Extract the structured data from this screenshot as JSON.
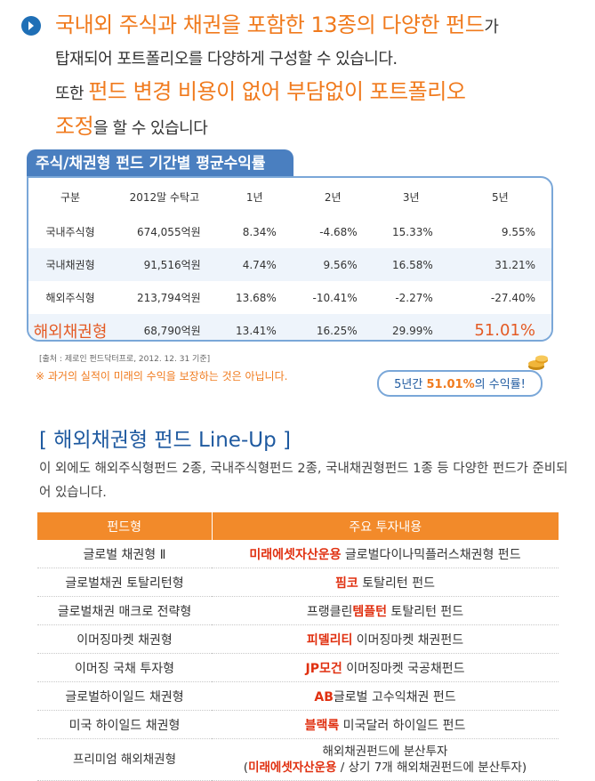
{
  "intro": {
    "line1_hl": "국내외 주식과 채권을 포함한 13종의 다양한 펀드",
    "line1_tail": "가",
    "line2": "탑재되어 포트폴리오를 다양하게 구성할 수 있습니다.",
    "line3_head": "또한 ",
    "line3_hl": "펀드 변경 비용이 없어 부담없이 포트폴리오",
    "line4_hl": "조정",
    "line4_tail": "을 할 수 있습니다"
  },
  "perf": {
    "title": "주식/채권형 펀드 기간별 평균수익률",
    "headers": [
      "구분",
      "2012말 수탁고",
      "1년",
      "2년",
      "3년",
      "5년"
    ],
    "rows": [
      [
        "국내주식형",
        "674,055억원",
        "8.34%",
        "-4.68%",
        "15.33%",
        "9.55%"
      ],
      [
        "국내채권형",
        "91,516억원",
        "4.74%",
        "9.56%",
        "16.58%",
        "31.21%"
      ],
      [
        "해외주식형",
        "213,794억원",
        "13.68%",
        "-10.41%",
        "-2.27%",
        "-27.40%"
      ],
      [
        "해외채권형",
        "68,790억원",
        "13.41%",
        "16.25%",
        "29.99%",
        "51.01%"
      ]
    ],
    "source": "[출처 : 제로인 펀드닥터프로, 2012. 12. 31 기준]",
    "disclaimer": "※ 과거의 실적이 미래의 수익을 보장하는 것은 아닙니다.",
    "callout_head": "5년간 ",
    "callout_pct": "51.01%",
    "callout_tail": "의 수익률!"
  },
  "lineup": {
    "title": "[ 해외채권형 펀드 Line-Up ]",
    "desc": "이 외에도 해외주식형펀드 2종, 국내주식형펀드 2종, 국내채권형펀드 1종 등 다양한 펀드가 준비되어 있습니다.",
    "col1": "펀드형",
    "col2": "주요 투자내용",
    "rows": [
      {
        "type": "글로벌 채권형 Ⅱ",
        "mgr": "미래에셋자산운용",
        "desc": " 글로벌다이나믹플러스채권형 펀드"
      },
      {
        "type": "글로벌채권 토탈리턴형",
        "mgr": "핌코",
        "desc": " 토탈리턴 펀드"
      },
      {
        "type": "글로벌채권 매크로 전략형",
        "pre": "프랭클린",
        "mgr": "템플턴",
        "desc": " 토탈리턴 펀드"
      },
      {
        "type": "이머징마켓 채권형",
        "mgr": "피델리티",
        "desc": " 이머징마켓 채권펀드"
      },
      {
        "type": "이머징 국채 투자형",
        "mgr": "JP모건",
        "desc": " 이머징마켓 국공채펀드"
      },
      {
        "type": "글로벌하이일드 채권형",
        "mgr": "AB",
        "desc": "글로벌 고수익채권 펀드"
      },
      {
        "type": "미국 하이일드 채권형",
        "mgr": "블랙록",
        "desc": " 미국달러 하이일드 펀드"
      }
    ],
    "last": {
      "type": "프리미엄 해외채권형",
      "line1": "해외채권펀드에 분산투자",
      "open": "(",
      "mgr": "미래에셋자산운용",
      "line2_tail": " / 상기 7개 해외채권펀드에 분산투자)"
    }
  }
}
